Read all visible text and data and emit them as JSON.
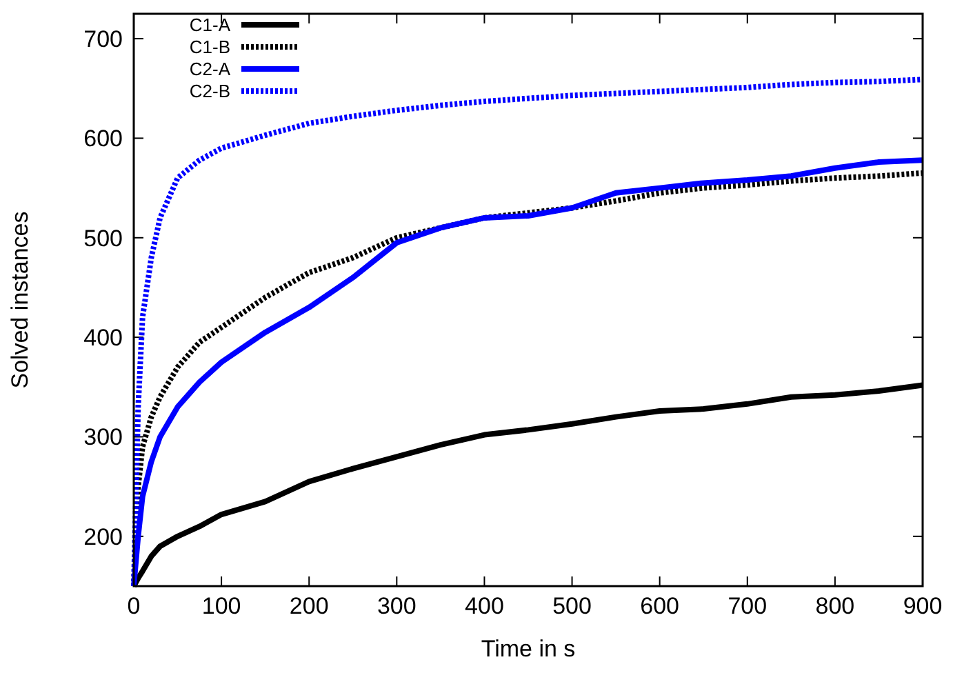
{
  "chart_data": {
    "type": "line",
    "xlabel": "Time in s",
    "ylabel": "Solved instances",
    "x": [
      0,
      5,
      10,
      20,
      30,
      50,
      75,
      100,
      150,
      200,
      250,
      300,
      350,
      400,
      450,
      500,
      550,
      600,
      650,
      700,
      750,
      800,
      850,
      900
    ],
    "series": [
      {
        "name": "C1-A",
        "color": "#000000",
        "line_style": "solid",
        "values": [
          150,
          158,
          165,
          180,
          190,
          200,
          210,
          222,
          235,
          255,
          268,
          280,
          292,
          302,
          307,
          313,
          320,
          326,
          328,
          333,
          340,
          342,
          346,
          352
        ]
      },
      {
        "name": "C1-B",
        "color": "#000000",
        "line_style": "dotted",
        "values": [
          150,
          250,
          290,
          320,
          340,
          370,
          395,
          410,
          440,
          465,
          480,
          500,
          510,
          520,
          525,
          530,
          537,
          545,
          550,
          553,
          557,
          560,
          562,
          565
        ]
      },
      {
        "name": "C2-A",
        "color": "#0000ff",
        "line_style": "solid",
        "values": [
          150,
          200,
          240,
          275,
          300,
          330,
          355,
          375,
          405,
          430,
          460,
          495,
          510,
          520,
          522,
          530,
          545,
          550,
          555,
          558,
          562,
          570,
          576,
          578
        ]
      },
      {
        "name": "C2-B",
        "color": "#0000ff",
        "line_style": "dotted",
        "values": [
          150,
          330,
          420,
          480,
          520,
          560,
          578,
          590,
          603,
          615,
          622,
          628,
          633,
          637,
          640,
          643,
          645,
          647,
          649,
          651,
          654,
          656,
          657,
          659
        ]
      }
    ],
    "xlim": [
      0,
      900
    ],
    "xticks": [
      0,
      100,
      200,
      300,
      400,
      500,
      600,
      700,
      800,
      900
    ],
    "ylim": [
      150,
      725
    ],
    "yticks": [
      200,
      300,
      400,
      500,
      600,
      700
    ],
    "grid": false,
    "legend": "top left"
  }
}
